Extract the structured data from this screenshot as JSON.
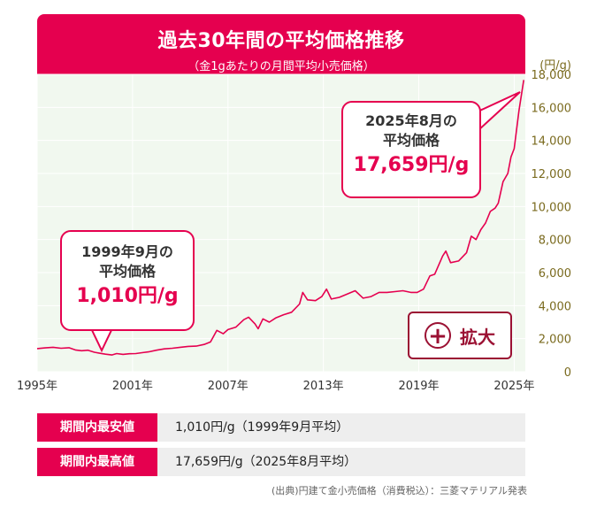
{
  "header": {
    "title": "過去30年間の平均価格推移",
    "subtitle": "（金1gあたりの月間平均小売価格）"
  },
  "callouts": {
    "min": {
      "line1": "1999年9月の",
      "line2": "平均価格",
      "value": "1,010円/g"
    },
    "max": {
      "line1": "2025年8月の",
      "line2": "平均価格",
      "value": "17,659円/g"
    }
  },
  "zoom_button": {
    "label": "拡大",
    "icon": "plus-circle-icon"
  },
  "table": {
    "rows": [
      {
        "label": "期間内最安値",
        "value": "1,010円/g（1999年9月平均）"
      },
      {
        "label": "期間内最高値",
        "value": "17,659円/g（2025年8月平均）"
      }
    ]
  },
  "source": "(出典)円建て金小売価格（消費税込）：三菱マテリアル発表",
  "colors": {
    "accent": "#e5004f",
    "button": "#9b1133",
    "plot_bg": "#f1f8ef",
    "axis_text": "#7a6a1e"
  },
  "chart_data": {
    "type": "line",
    "title": "過去30年間の平均価格推移",
    "subtitle": "（金1gあたりの月間平均小売価格）",
    "xlabel": "",
    "ylabel": "(円/g)",
    "xlim": [
      1995,
      2025.7
    ],
    "ylim": [
      0,
      18000
    ],
    "x_ticks": [
      1995,
      2001,
      2007,
      2013,
      2019,
      2025
    ],
    "x_tick_labels": [
      "1995年",
      "2001年",
      "2007年",
      "2013年",
      "2019年",
      "2025年"
    ],
    "y_ticks": [
      0,
      2000,
      4000,
      6000,
      8000,
      10000,
      12000,
      14000,
      16000,
      18000
    ],
    "y_tick_labels": [
      "0",
      "2,000",
      "4,000",
      "6,000",
      "8,000",
      "10,000",
      "12,000",
      "14,000",
      "16,000",
      "18,000"
    ],
    "grid": true,
    "series": [
      {
        "color": "#e5004f",
        "points": [
          [
            1995.0,
            1400
          ],
          [
            1995.5,
            1440
          ],
          [
            1996.0,
            1480
          ],
          [
            1996.5,
            1420
          ],
          [
            1997.0,
            1450
          ],
          [
            1997.4,
            1320
          ],
          [
            1997.8,
            1270
          ],
          [
            1998.2,
            1300
          ],
          [
            1998.6,
            1180
          ],
          [
            1999.0,
            1110
          ],
          [
            1999.3,
            1060
          ],
          [
            1999.7,
            1010
          ],
          [
            2000.0,
            1100
          ],
          [
            2000.4,
            1050
          ],
          [
            2000.8,
            1090
          ],
          [
            2001.2,
            1100
          ],
          [
            2001.6,
            1150
          ],
          [
            2002.0,
            1200
          ],
          [
            2002.5,
            1300
          ],
          [
            2003.0,
            1380
          ],
          [
            2003.5,
            1420
          ],
          [
            2004.0,
            1480
          ],
          [
            2004.5,
            1530
          ],
          [
            2005.0,
            1550
          ],
          [
            2005.5,
            1650
          ],
          [
            2005.9,
            1800
          ],
          [
            2006.3,
            2500
          ],
          [
            2006.7,
            2300
          ],
          [
            2007.0,
            2550
          ],
          [
            2007.5,
            2700
          ],
          [
            2008.0,
            3150
          ],
          [
            2008.3,
            3300
          ],
          [
            2008.7,
            2900
          ],
          [
            2008.9,
            2600
          ],
          [
            2009.2,
            3200
          ],
          [
            2009.6,
            3000
          ],
          [
            2010.0,
            3250
          ],
          [
            2010.5,
            3450
          ],
          [
            2011.0,
            3600
          ],
          [
            2011.5,
            4100
          ],
          [
            2011.7,
            4800
          ],
          [
            2012.0,
            4350
          ],
          [
            2012.5,
            4300
          ],
          [
            2012.9,
            4550
          ],
          [
            2013.2,
            5000
          ],
          [
            2013.5,
            4400
          ],
          [
            2014.0,
            4500
          ],
          [
            2014.5,
            4700
          ],
          [
            2015.0,
            4900
          ],
          [
            2015.5,
            4450
          ],
          [
            2016.0,
            4550
          ],
          [
            2016.5,
            4800
          ],
          [
            2017.0,
            4800
          ],
          [
            2017.5,
            4850
          ],
          [
            2018.0,
            4900
          ],
          [
            2018.5,
            4800
          ],
          [
            2018.9,
            4800
          ],
          [
            2019.3,
            5000
          ],
          [
            2019.7,
            5800
          ],
          [
            2020.0,
            5900
          ],
          [
            2020.5,
            7000
          ],
          [
            2020.7,
            7300
          ],
          [
            2021.0,
            6600
          ],
          [
            2021.5,
            6700
          ],
          [
            2022.0,
            7200
          ],
          [
            2022.3,
            8200
          ],
          [
            2022.6,
            8000
          ],
          [
            2022.9,
            8600
          ],
          [
            2023.2,
            9000
          ],
          [
            2023.5,
            9700
          ],
          [
            2023.8,
            9900
          ],
          [
            2024.0,
            10200
          ],
          [
            2024.3,
            11500
          ],
          [
            2024.6,
            12000
          ],
          [
            2024.8,
            13000
          ],
          [
            2025.0,
            13500
          ],
          [
            2025.3,
            15800
          ],
          [
            2025.6,
            17659
          ]
        ]
      }
    ],
    "annotations": [
      {
        "x": 1999.7,
        "y": 1010,
        "text": "1,010円/g"
      },
      {
        "x": 2025.6,
        "y": 17659,
        "text": "17,659円/g"
      }
    ]
  }
}
